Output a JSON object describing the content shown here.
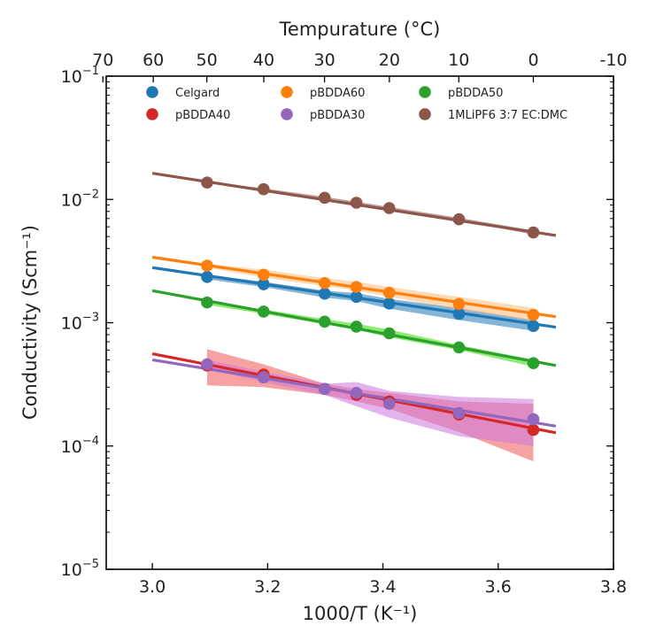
{
  "chart_data": {
    "type": "scatter",
    "xlabel": "1000/T (K⁻¹)",
    "x2label": "Tempurature (°C)",
    "ylabel": "Conductivity (Scm⁻¹)",
    "yscale": "log",
    "xlim": [
      2.92,
      3.8
    ],
    "ylim": [
      1e-05,
      0.1
    ],
    "x_ticks": [
      {
        "value": 3.0,
        "label": "3.0"
      },
      {
        "value": 3.2,
        "label": "3.2"
      },
      {
        "value": 3.4,
        "label": "3.4"
      },
      {
        "value": 3.6,
        "label": "3.6"
      },
      {
        "value": 3.8,
        "label": "3.8"
      }
    ],
    "y_ticks": [
      {
        "value": 1e-05,
        "base": "10",
        "exp": "−5"
      },
      {
        "value": 0.0001,
        "base": "10",
        "exp": "−4"
      },
      {
        "value": 0.001,
        "base": "10",
        "exp": "−3"
      },
      {
        "value": 0.01,
        "base": "10",
        "exp": "−2"
      },
      {
        "value": 0.1,
        "base": "10",
        "exp": "−1"
      }
    ],
    "top_ticks": [
      {
        "celsius": 70,
        "label": "70"
      },
      {
        "celsius": 60,
        "label": "60"
      },
      {
        "celsius": 50,
        "label": "50"
      },
      {
        "celsius": 40,
        "label": "40"
      },
      {
        "celsius": 30,
        "label": "30"
      },
      {
        "celsius": 20,
        "label": "20"
      },
      {
        "celsius": 10,
        "label": "10"
      },
      {
        "celsius": 0,
        "label": "0"
      },
      {
        "celsius": -10,
        "label": "-10"
      }
    ],
    "legend_position": "top",
    "series": [
      {
        "name": "Celgard",
        "color": "#1f77b4",
        "band_color": "#1f77b4",
        "x": [
          3.095,
          3.193,
          3.299,
          3.354,
          3.411,
          3.532,
          3.661
        ],
        "y": [
          0.00235,
          0.00205,
          0.00172,
          0.00162,
          0.00143,
          0.00118,
          0.00094
        ],
        "fit_x": [
          3.0,
          3.7
        ],
        "fit_y": [
          0.0028,
          0.00092
        ],
        "band_lower": [
          0.00225,
          0.00195,
          0.0016,
          0.0015,
          0.0013,
          0.00105,
          0.00086
        ],
        "band_upper": [
          0.00245,
          0.00215,
          0.00182,
          0.00174,
          0.00156,
          0.00132,
          0.00105
        ]
      },
      {
        "name": "pBDDA60",
        "color": "#ff7f0e",
        "band_color": "#ffbb78",
        "x": [
          3.095,
          3.193,
          3.299,
          3.354,
          3.411,
          3.532,
          3.661
        ],
        "y": [
          0.0029,
          0.00245,
          0.0021,
          0.00195,
          0.00175,
          0.00142,
          0.00116
        ],
        "fit_x": [
          3.0,
          3.7
        ],
        "fit_y": [
          0.0034,
          0.00112
        ],
        "band_lower": [
          0.0028,
          0.00232,
          0.00198,
          0.00182,
          0.00162,
          0.00128,
          0.00104
        ],
        "band_upper": [
          0.003,
          0.0027,
          0.0023,
          0.00215,
          0.00195,
          0.00162,
          0.00132
        ]
      },
      {
        "name": "pBDDA50",
        "color": "#2ca02c",
        "band_color": "#33dd00",
        "x": [
          3.095,
          3.193,
          3.299,
          3.354,
          3.411,
          3.532,
          3.661
        ],
        "y": [
          0.00146,
          0.00123,
          0.00102,
          0.00093,
          0.00082,
          0.00063,
          0.00047
        ],
        "fit_x": [
          3.0,
          3.7
        ],
        "fit_y": [
          0.00182,
          0.00045
        ],
        "band_lower": [
          0.0014,
          0.00118,
          0.00097,
          0.00088,
          0.00076,
          0.0006,
          0.00044
        ],
        "band_upper": [
          0.00152,
          0.00128,
          0.00107,
          0.00098,
          0.00088,
          0.00066,
          0.0005
        ]
      },
      {
        "name": "pBDDA40",
        "color": "#d62728",
        "band_color": "#ee5555",
        "x": [
          3.095,
          3.193,
          3.299,
          3.354,
          3.411,
          3.532,
          3.661
        ],
        "y": [
          0.00045,
          0.00038,
          0.00029,
          0.00026,
          0.00023,
          0.00018,
          0.000135
        ],
        "fit_x": [
          3.0,
          3.7
        ],
        "fit_y": [
          0.00056,
          0.000128
        ],
        "band_lower": [
          0.00031,
          0.0003,
          0.00026,
          0.00023,
          0.0002,
          0.00013,
          7.5e-05
        ],
        "band_upper": [
          0.00061,
          0.00046,
          0.00032,
          0.00029,
          0.00027,
          0.00023,
          0.00022
        ]
      },
      {
        "name": "pBDDA30",
        "color": "#9467bd",
        "band_color": "#cc77dd",
        "x": [
          3.095,
          3.193,
          3.299,
          3.354,
          3.411,
          3.532,
          3.661
        ],
        "y": [
          0.00046,
          0.00036,
          0.00029,
          0.00027,
          0.00022,
          0.000185,
          0.000165
        ],
        "fit_x": [
          3.0,
          3.7
        ],
        "fit_y": [
          0.0005,
          0.000145
        ],
        "band_lower": [
          0.00042,
          0.00033,
          0.00026,
          0.00021,
          0.00017,
          0.00012,
          0.0001
        ],
        "band_upper": [
          0.0005,
          0.0004,
          0.00032,
          0.00033,
          0.00028,
          0.00025,
          0.00024
        ]
      },
      {
        "name": "1MLiPF6 3:7 EC:DMC",
        "color": "#8c564b",
        "band_color": "#8c564b",
        "x": [
          3.095,
          3.193,
          3.299,
          3.354,
          3.411,
          3.532,
          3.661
        ],
        "y": [
          0.0137,
          0.0121,
          0.0103,
          0.0094,
          0.0085,
          0.0069,
          0.0054
        ],
        "fit_x": [
          3.0,
          3.7
        ],
        "fit_y": [
          0.0163,
          0.0051
        ],
        "band_lower": [
          0.0135,
          0.0119,
          0.0101,
          0.0092,
          0.0083,
          0.0067,
          0.0052
        ],
        "band_upper": [
          0.0139,
          0.0123,
          0.0105,
          0.0096,
          0.0087,
          0.0071,
          0.0056
        ]
      }
    ]
  }
}
